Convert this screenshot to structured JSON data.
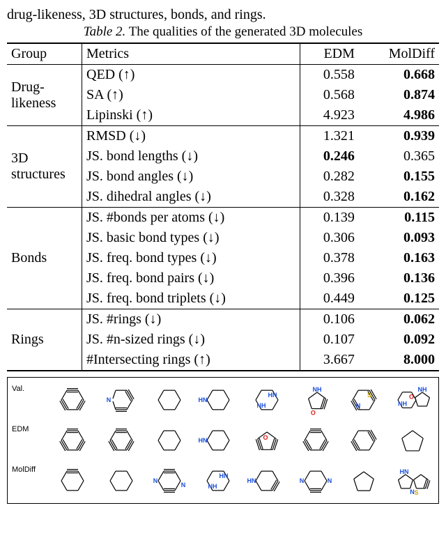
{
  "crop_text": "drug-likeness, 3D structures, bonds, and rings.",
  "caption_prefix": "Table 2.",
  "caption_rest": " The qualities of the generated 3D molecules",
  "header": {
    "group": "Group",
    "metrics": "Metrics",
    "edm": "EDM",
    "moldiff": "MolDiff"
  },
  "groups": [
    {
      "name": "Drug-\nlikeness",
      "rows": [
        {
          "metric": "QED (↑)",
          "edm": "0.558",
          "moldiff": "0.668",
          "bold": "moldiff"
        },
        {
          "metric": "SA (↑)",
          "edm": "0.568",
          "moldiff": "0.874",
          "bold": "moldiff"
        },
        {
          "metric": "Lipinski (↑)",
          "edm": "4.923",
          "moldiff": "4.986",
          "bold": "moldiff"
        }
      ]
    },
    {
      "name": "3D\nstructures",
      "rows": [
        {
          "metric": "RMSD (↓)",
          "edm": "1.321",
          "moldiff": "0.939",
          "bold": "moldiff"
        },
        {
          "metric": "JS. bond lengths (↓)",
          "edm": "0.246",
          "moldiff": "0.365",
          "bold": "edm"
        },
        {
          "metric": "JS. bond angles (↓)",
          "edm": "0.282",
          "moldiff": "0.155",
          "bold": "moldiff"
        },
        {
          "metric": "JS. dihedral angles (↓)",
          "edm": "0.328",
          "moldiff": "0.162",
          "bold": "moldiff"
        }
      ]
    },
    {
      "name": "Bonds",
      "rows": [
        {
          "metric": "JS. #bonds per atoms (↓)",
          "edm": "0.139",
          "moldiff": "0.115",
          "bold": "moldiff"
        },
        {
          "metric": "JS. basic bond types (↓)",
          "edm": "0.306",
          "moldiff": "0.093",
          "bold": "moldiff"
        },
        {
          "metric": "JS. freq. bond types (↓)",
          "edm": "0.378",
          "moldiff": "0.163",
          "bold": "moldiff"
        },
        {
          "metric": "JS. freq. bond pairs (↓)",
          "edm": "0.396",
          "moldiff": "0.136",
          "bold": "moldiff"
        },
        {
          "metric": "JS. freq. bond triplets (↓)",
          "edm": "0.449",
          "moldiff": "0.125",
          "bold": "moldiff"
        }
      ]
    },
    {
      "name": "Rings",
      "rows": [
        {
          "metric": "JS. #rings (↓)",
          "edm": "0.106",
          "moldiff": "0.062",
          "bold": "moldiff"
        },
        {
          "metric": "JS. #n-sized rings (↓)",
          "edm": "0.107",
          "moldiff": "0.092",
          "bold": "moldiff"
        },
        {
          "metric": "#Intersecting rings (↑)",
          "edm": "3.667",
          "moldiff": "8.000",
          "bold": "moldiff"
        }
      ]
    }
  ],
  "molgrid": {
    "row_labels": [
      "Val.",
      "EDM",
      "MolDiff"
    ],
    "colors": {
      "bond": "#000000",
      "N": "#1a4ed8",
      "O": "#d81a1a",
      "S": "#c8a500",
      "H": "#1a4ed8"
    },
    "rows": [
      [
        {
          "type": "benzene"
        },
        {
          "type": "pyridine",
          "N_pos": "left"
        },
        {
          "type": "cyclohexane"
        },
        {
          "type": "NH-piperidine"
        },
        {
          "type": "morpholine-NH"
        },
        {
          "type": "5ring-NH-O"
        },
        {
          "type": "thiazine-N"
        },
        {
          "type": "fused-NH-S-pyrrolidine"
        }
      ],
      [
        {
          "type": "benzene"
        },
        {
          "type": "benzene"
        },
        {
          "type": "cyclohexane"
        },
        {
          "type": "NH-piperidine"
        },
        {
          "type": "5ring-O-db"
        },
        {
          "type": "benzene"
        },
        {
          "type": "cyclohexene-db"
        },
        {
          "type": "cyclopentane6"
        }
      ],
      [
        {
          "type": "cyclohexene"
        },
        {
          "type": "cyclohexane"
        },
        {
          "type": "N-pyridazine"
        },
        {
          "type": "piperazine-NH2"
        },
        {
          "type": "NH-piperidine-db"
        },
        {
          "type": "N-dihydropyridine"
        },
        {
          "type": "cyclopentane"
        },
        {
          "type": "fused-NH-S-5ring"
        }
      ]
    ]
  }
}
